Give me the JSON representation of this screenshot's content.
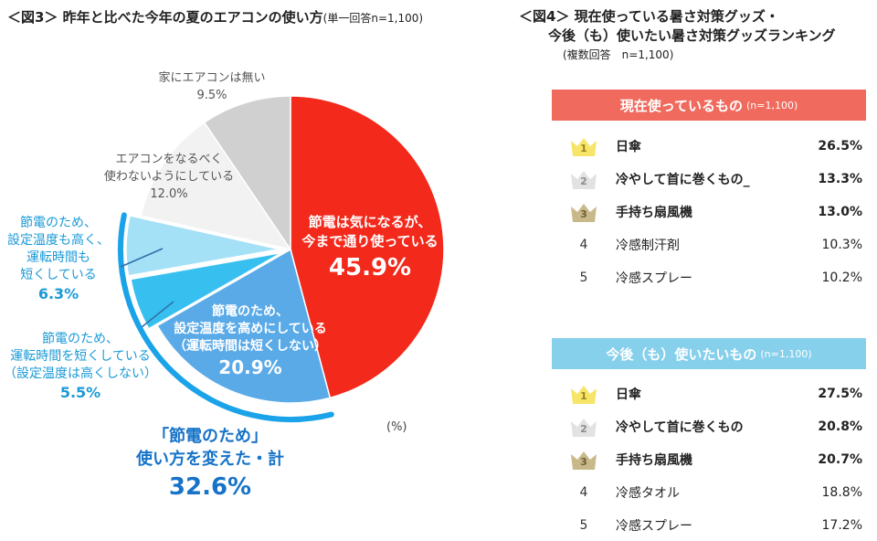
{
  "fig3": {
    "title": "＜図3＞ 昨年と比べた今年の夏のエアコンの使い方",
    "subtitle": "(単一回答n=1,100)",
    "unit": "(%)",
    "total": {
      "line1": "「節電のため」",
      "line2": "使い方を変えた・計",
      "value": "32.6%"
    }
  },
  "chart_data": {
    "type": "pie",
    "slices": [
      {
        "label_lines": [
          "節電は気になるが、",
          "今まで通り使っている"
        ],
        "value": 45.9,
        "value_label": "45.9%",
        "color": "#f2291b"
      },
      {
        "label_lines": [
          "節電のため、",
          "設定温度を高めにしている",
          "（運転時間は短くしない）"
        ],
        "value": 20.9,
        "value_label": "20.9%",
        "color": "#5aaae8"
      },
      {
        "label_lines": [
          "節電のため、",
          "運転時間を短くしている",
          "（設定温度は高くしない）"
        ],
        "value": 5.5,
        "value_label": "5.5%",
        "color": "#37c0ef"
      },
      {
        "label_lines": [
          "節電のため、",
          "設定温度も高く、",
          "運転時間も",
          "短くしている"
        ],
        "value": 6.3,
        "value_label": "6.3%",
        "color": "#a5e1f6"
      },
      {
        "label_lines": [
          "エアコンをなるべく",
          "使わないようにしている"
        ],
        "value": 12.0,
        "value_label": "12.0%",
        "color": "#f2f2f2"
      },
      {
        "label_lines": [
          "家にエアコンは無い"
        ],
        "value": 9.5,
        "value_label": "9.5%",
        "color": "#d0d0d0"
      }
    ]
  },
  "fig4": {
    "title_line1": "＜図4＞ 現在使っている暑さ対策グッズ・",
    "title_line2": "今後（も）使いたい暑さ対策グッズランキング",
    "subtitle": "(複数回答　n=1,100)",
    "current": {
      "header": "現在使っているもの",
      "n": "(n=1,100)",
      "items": [
        {
          "rank": "1",
          "name": "日傘",
          "value": "26.5%"
        },
        {
          "rank": "2",
          "name": "冷やして首に巻くもの_",
          "value": "13.3%"
        },
        {
          "rank": "3",
          "name": "手持ち扇風機",
          "value": "13.0%"
        },
        {
          "rank": "4",
          "name": "冷感制汗剤",
          "value": "10.3%"
        },
        {
          "rank": "5",
          "name": "冷感スプレー",
          "value": "10.2%"
        }
      ]
    },
    "future": {
      "header": "今後（も）使いたいもの",
      "n": "(n=1,100)",
      "items": [
        {
          "rank": "1",
          "name": "日傘",
          "value": "27.5%"
        },
        {
          "rank": "2",
          "name": "冷やして首に巻くもの",
          "value": "20.8%"
        },
        {
          "rank": "3",
          "name": "手持ち扇風機",
          "value": "20.7%"
        },
        {
          "rank": "4",
          "name": "冷感タオル",
          "value": "18.8%"
        },
        {
          "rank": "5",
          "name": "冷感スプレー",
          "value": "17.2%"
        }
      ]
    },
    "crown_colors": {
      "1": "#f7e56a",
      "2": "#e2e2e2",
      "3": "#c9b98a"
    },
    "crown_text_colors": {
      "1": "#9a8420",
      "2": "#8c8c8c",
      "3": "#6e5f35"
    }
  }
}
